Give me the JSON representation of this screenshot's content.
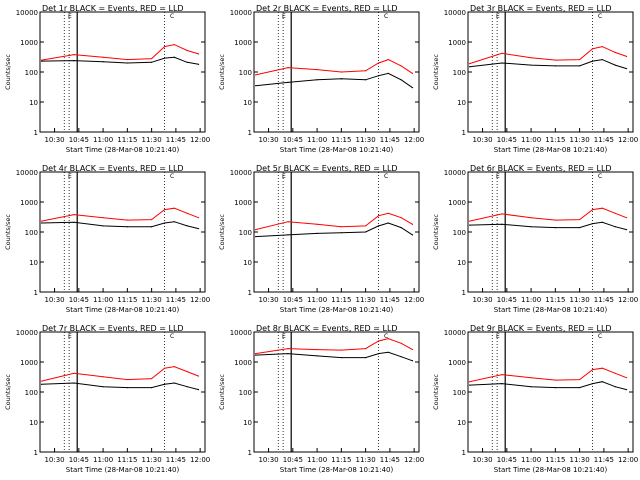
{
  "chart_data": {
    "type": "line",
    "ylabel": "Counts/sec",
    "xlabel": "Start Time (28-Mar-08 10:21:40)",
    "yscale": "log",
    "ylim": [
      1,
      10000
    ],
    "yticks": [
      "1",
      "10",
      "100",
      "1000",
      "10000"
    ],
    "legend_markers": [
      "E",
      "C"
    ],
    "colors": {
      "events": "#000000",
      "lld": "#ff0000",
      "axis": "#000000",
      "guide": "#000000"
    },
    "guide_lines_time": [
      "10:36",
      "10:39",
      "10:44",
      "11:38"
    ],
    "panels": [
      {
        "title": "Det 1r  BLACK = Events, RED = LLD",
        "xticks": [
          "10:30",
          "10:45",
          "11:00",
          "11:15",
          "11:30",
          "11:45",
          "12:00"
        ],
        "series": [
          {
            "key": "events",
            "t": [
              "10:22",
              "10:42",
              "11:00",
              "11:15",
              "11:30",
              "11:38",
              "11:44",
              "11:52",
              "11:59"
            ],
            "v": [
              230,
              240,
              220,
              200,
              210,
              290,
              310,
              210,
              180
            ]
          },
          {
            "key": "lld",
            "t": [
              "10:22",
              "10:42",
              "11:00",
              "11:15",
              "11:30",
              "11:38",
              "11:44",
              "11:52",
              "11:59"
            ],
            "v": [
              250,
              380,
              310,
              260,
              280,
              700,
              820,
              520,
              400
            ]
          }
        ]
      },
      {
        "title": "Det 2r  BLACK = Events, RED = LLD",
        "xticks": [
          "10:30",
          "10:45",
          "11:00",
          "11:15",
          "11:30",
          "11:45",
          "12:00"
        ],
        "series": [
          {
            "key": "events",
            "t": [
              "10:22",
              "10:42",
              "11:00",
              "11:15",
              "11:30",
              "11:38",
              "11:44",
              "11:52",
              "11:59"
            ],
            "v": [
              35,
              45,
              55,
              60,
              55,
              75,
              90,
              55,
              30
            ]
          },
          {
            "key": "lld",
            "t": [
              "10:22",
              "10:42",
              "11:00",
              "11:15",
              "11:30",
              "11:38",
              "11:44",
              "11:52",
              "11:59"
            ],
            "v": [
              80,
              140,
              120,
              100,
              110,
              200,
              260,
              160,
              90
            ]
          }
        ]
      },
      {
        "title": "Det 3r  BLACK = Events, RED = LLD",
        "xticks": [
          "10:30",
          "10:45",
          "11:00",
          "11:15",
          "11:30",
          "11:45",
          "12:00"
        ],
        "series": [
          {
            "key": "events",
            "t": [
              "10:22",
              "10:42",
              "11:00",
              "11:15",
              "11:30",
              "11:38",
              "11:44",
              "11:52",
              "11:59"
            ],
            "v": [
              150,
              200,
              170,
              160,
              160,
              230,
              260,
              170,
              130
            ]
          },
          {
            "key": "lld",
            "t": [
              "10:22",
              "10:42",
              "11:00",
              "11:15",
              "11:30",
              "11:38",
              "11:44",
              "11:52",
              "11:59"
            ],
            "v": [
              190,
              420,
              300,
              250,
              260,
              600,
              700,
              450,
              330
            ]
          }
        ]
      },
      {
        "title": "Det 4r  BLACK = Events, RED = LLD",
        "xticks": [
          "10:30",
          "10:45",
          "11:00",
          "11:15",
          "11:30",
          "11:45",
          "12:00"
        ],
        "series": [
          {
            "key": "events",
            "t": [
              "10:22",
              "10:42",
              "11:00",
              "11:15",
              "11:30",
              "11:38",
              "11:44",
              "11:52",
              "11:59"
            ],
            "v": [
              200,
              210,
              160,
              150,
              150,
              200,
              220,
              160,
              130
            ]
          },
          {
            "key": "lld",
            "t": [
              "10:22",
              "10:42",
              "11:00",
              "11:15",
              "11:30",
              "11:38",
              "11:44",
              "11:52",
              "11:59"
            ],
            "v": [
              230,
              380,
              300,
              250,
              260,
              560,
              620,
              420,
              300
            ]
          }
        ]
      },
      {
        "title": "Det 5r  BLACK = Events, RED = LLD",
        "xticks": [
          "10:30",
          "10:45",
          "11:00",
          "11:15",
          "11:30",
          "11:45",
          "12:00"
        ],
        "series": [
          {
            "key": "events",
            "t": [
              "10:22",
              "10:42",
              "11:00",
              "11:15",
              "11:30",
              "11:38",
              "11:44",
              "11:52",
              "11:59"
            ],
            "v": [
              70,
              80,
              90,
              95,
              100,
              160,
              200,
              140,
              80
            ]
          },
          {
            "key": "lld",
            "t": [
              "10:22",
              "10:42",
              "11:00",
              "11:15",
              "11:30",
              "11:38",
              "11:44",
              "11:52",
              "11:59"
            ],
            "v": [
              120,
              220,
              180,
              150,
              160,
              350,
              420,
              300,
              180
            ]
          }
        ]
      },
      {
        "title": "Det 6r  BLACK = Events, RED = LLD",
        "xticks": [
          "10:30",
          "10:45",
          "11:00",
          "11:15",
          "11:30",
          "11:45",
          "12:00"
        ],
        "series": [
          {
            "key": "events",
            "t": [
              "10:22",
              "10:42",
              "11:00",
              "11:15",
              "11:30",
              "11:38",
              "11:44",
              "11:52",
              "11:59"
            ],
            "v": [
              170,
              180,
              150,
              140,
              140,
              190,
              210,
              150,
              120
            ]
          },
          {
            "key": "lld",
            "t": [
              "10:22",
              "10:42",
              "11:00",
              "11:15",
              "11:30",
              "11:38",
              "11:44",
              "11:52",
              "11:59"
            ],
            "v": [
              230,
              400,
              300,
              250,
              260,
              560,
              620,
              420,
              300
            ]
          }
        ]
      },
      {
        "title": "Det 7r  BLACK = Events, RED = LLD",
        "xticks": [
          "10:30",
          "10:45",
          "11:00",
          "11:15",
          "11:30",
          "11:45",
          "12:00"
        ],
        "series": [
          {
            "key": "events",
            "t": [
              "10:22",
              "10:42",
              "11:00",
              "11:15",
              "11:30",
              "11:38",
              "11:44",
              "11:52",
              "11:59"
            ],
            "v": [
              180,
              200,
              150,
              140,
              140,
              180,
              200,
              150,
              120
            ]
          },
          {
            "key": "lld",
            "t": [
              "10:22",
              "10:42",
              "11:00",
              "11:15",
              "11:30",
              "11:38",
              "11:44",
              "11:52",
              "11:59"
            ],
            "v": [
              230,
              420,
              320,
              260,
              280,
              620,
              700,
              480,
              340
            ]
          }
        ]
      },
      {
        "title": "Det 8r  BLACK = Events, RED = LLD",
        "xticks": [
          "10:30",
          "10:45",
          "11:00",
          "11:15",
          "11:30",
          "11:45",
          "12:00"
        ],
        "series": [
          {
            "key": "events",
            "t": [
              "10:22",
              "10:42",
              "11:00",
              "11:15",
              "11:30",
              "11:38",
              "11:44",
              "11:52",
              "11:59"
            ],
            "v": [
              1700,
              1900,
              1600,
              1400,
              1400,
              1900,
              2100,
              1500,
              1100
            ]
          },
          {
            "key": "lld",
            "t": [
              "10:22",
              "10:42",
              "11:00",
              "11:15",
              "11:30",
              "11:38",
              "11:44",
              "11:52",
              "11:59"
            ],
            "v": [
              1900,
              2800,
              2600,
              2500,
              2800,
              5000,
              6000,
              4200,
              2600
            ]
          }
        ]
      },
      {
        "title": "Det 9r  BLACK = Events, RED = LLD",
        "xticks": [
          "10:30",
          "10:45",
          "11:00",
          "11:15",
          "11:30",
          "11:45",
          "12:00"
        ],
        "series": [
          {
            "key": "events",
            "t": [
              "10:22",
              "10:42",
              "11:00",
              "11:15",
              "11:30",
              "11:38",
              "11:44",
              "11:52",
              "11:59"
            ],
            "v": [
              170,
              190,
              150,
              140,
              140,
              190,
              220,
              150,
              120
            ]
          },
          {
            "key": "lld",
            "t": [
              "10:22",
              "10:42",
              "11:00",
              "11:15",
              "11:30",
              "11:38",
              "11:44",
              "11:52",
              "11:59"
            ],
            "v": [
              220,
              380,
              300,
              250,
              260,
              560,
              620,
              420,
              300
            ]
          }
        ]
      }
    ]
  }
}
